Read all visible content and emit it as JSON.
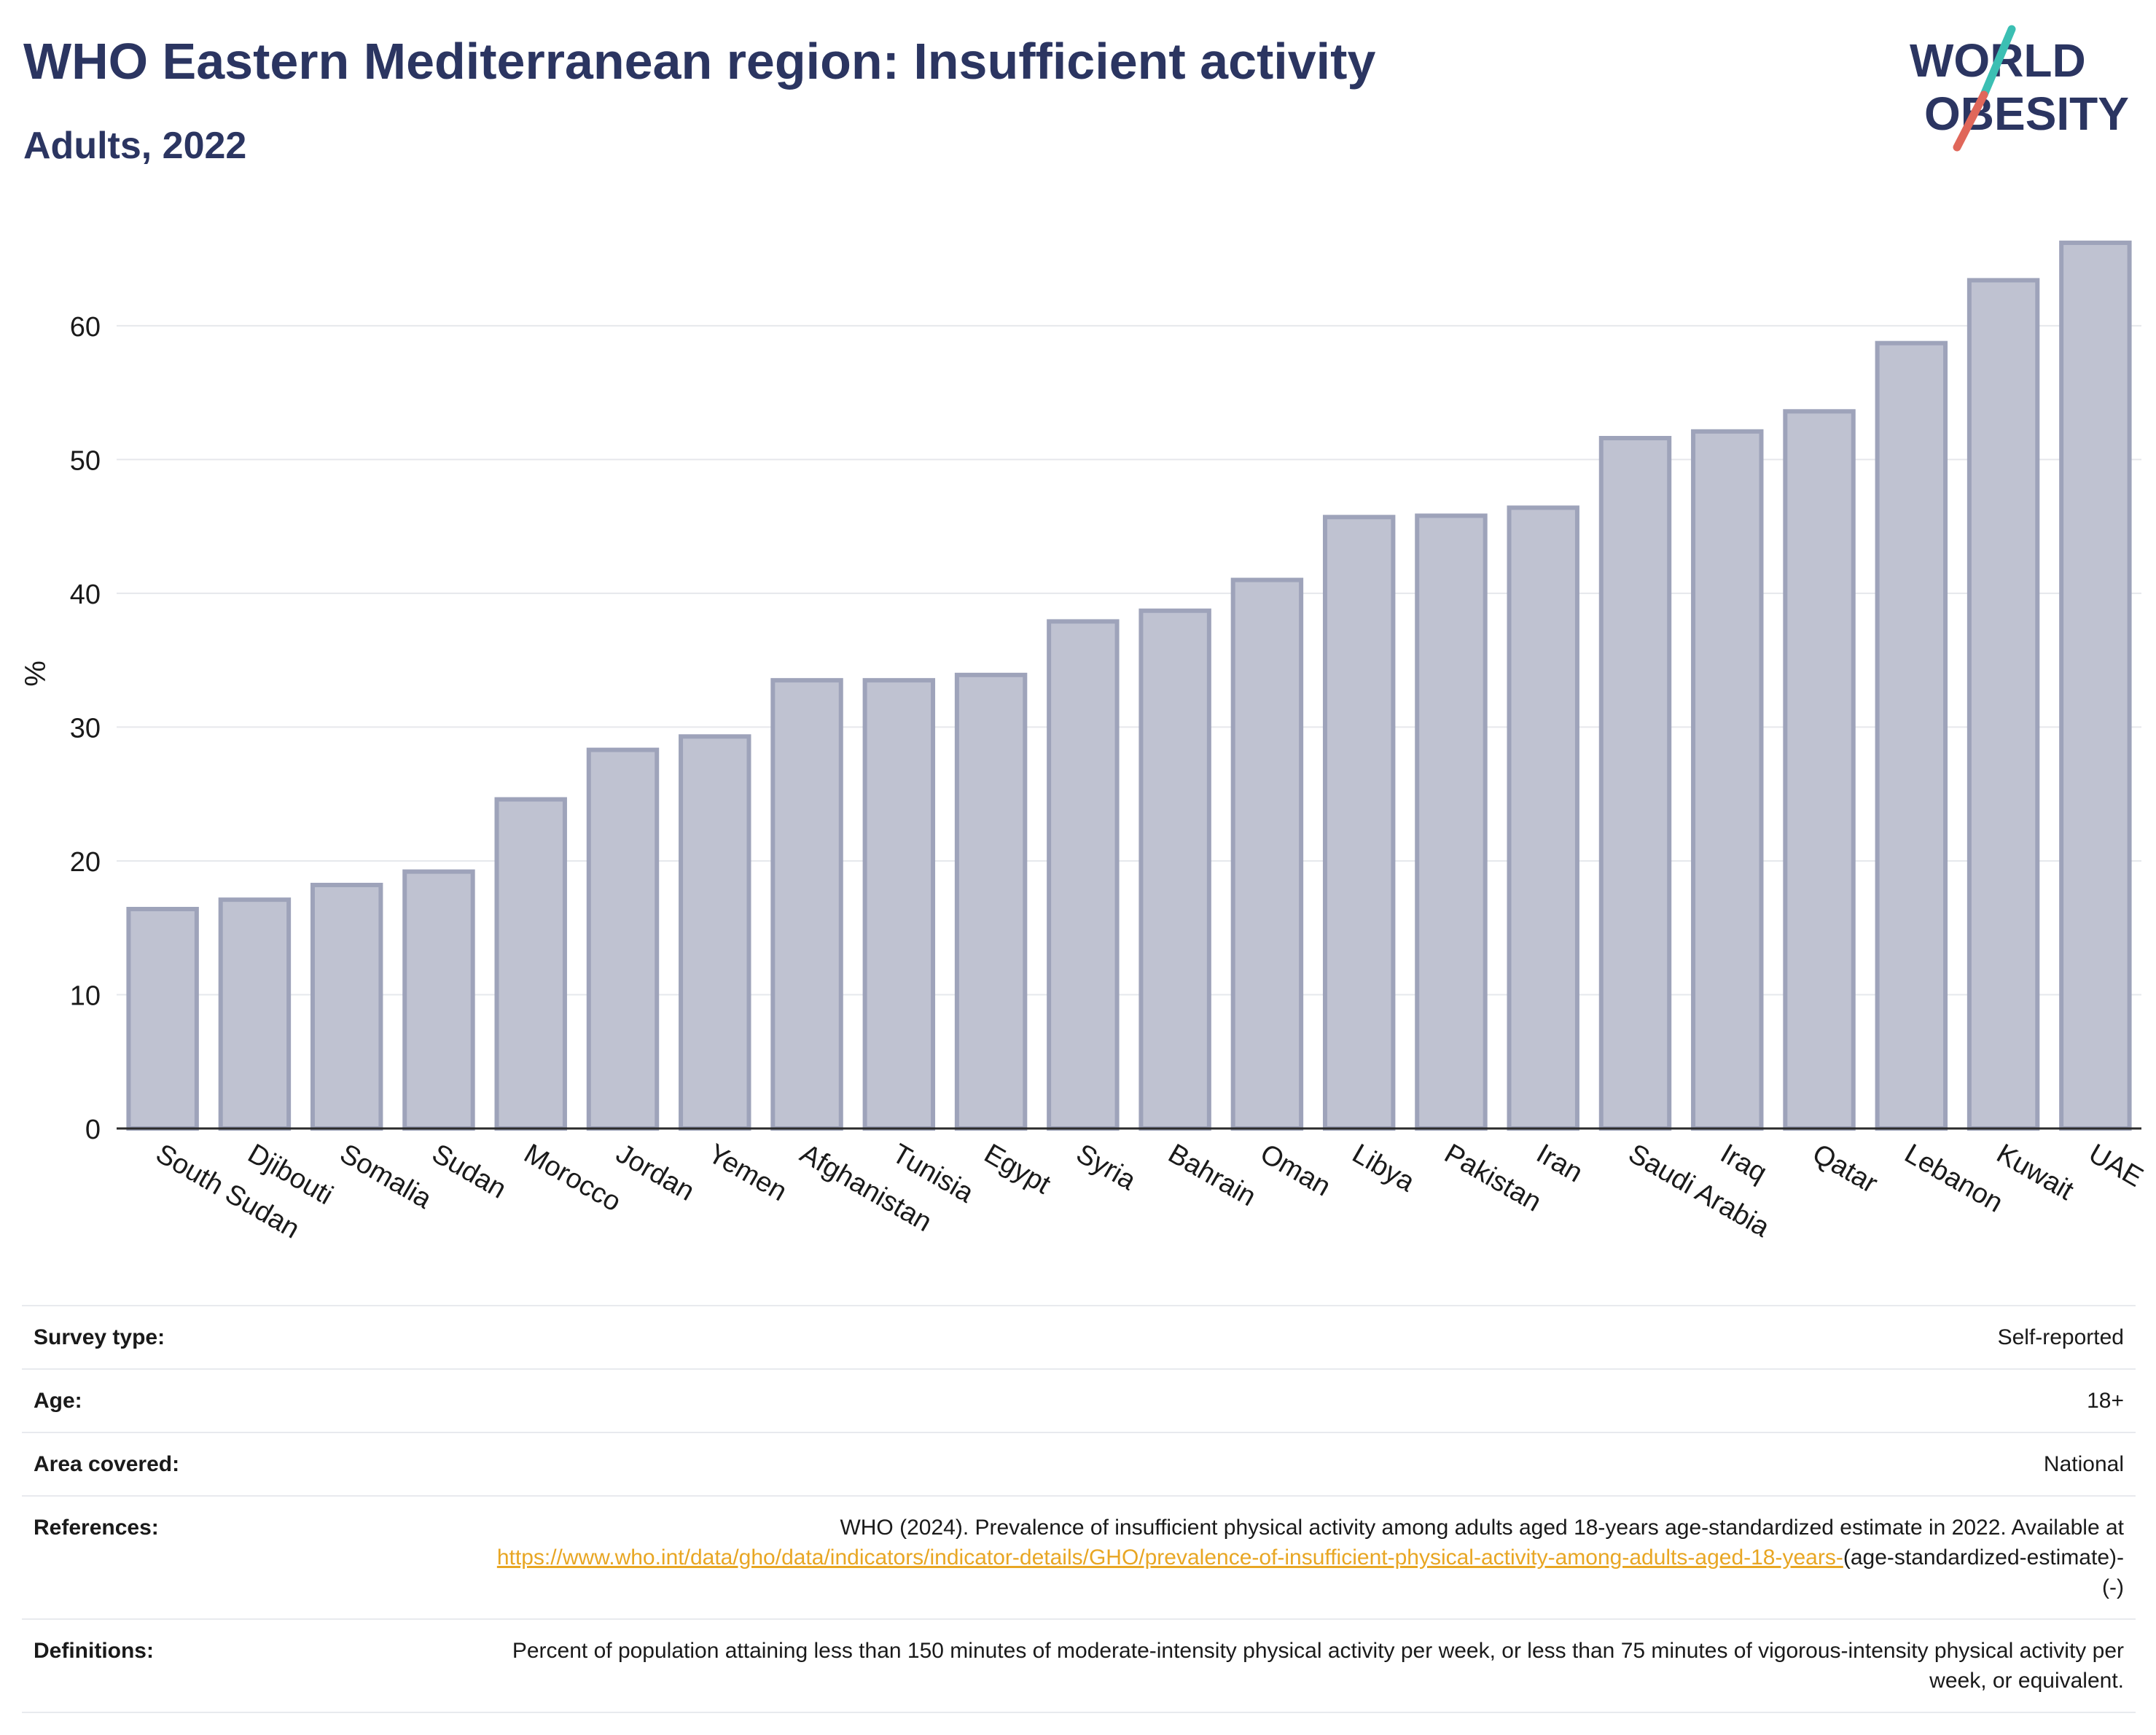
{
  "header": {
    "title": "WHO Eastern Mediterranean region: Insufficient activity",
    "subtitle": "Adults, 2022"
  },
  "logo": {
    "line1": "WORLD",
    "line2": "OBESITY",
    "colors": {
      "text": "#2b3561",
      "slash_teal": "#3bbfb3",
      "slash_coral": "#e0675a"
    }
  },
  "chart_data": {
    "type": "bar",
    "title": "WHO Eastern Mediterranean region: Insufficient activity",
    "subtitle": "Adults, 2022",
    "xlabel": "",
    "ylabel": "%",
    "ylim": [
      0,
      68
    ],
    "yticks": [
      0,
      10,
      20,
      30,
      40,
      50,
      60
    ],
    "grid": true,
    "categories": [
      "South Sudan",
      "Djibouti",
      "Somalia",
      "Sudan",
      "Morocco",
      "Jordan",
      "Yemen",
      "Afghanistan",
      "Tunisia",
      "Egypt",
      "Syria",
      "Bahrain",
      "Oman",
      "Libya",
      "Pakistan",
      "Iran",
      "Saudi Arabia",
      "Iraq",
      "Qatar",
      "Lebanon",
      "Kuwait",
      "UAE"
    ],
    "values": [
      16.4,
      17.1,
      18.2,
      19.2,
      24.6,
      28.3,
      29.3,
      33.5,
      33.5,
      33.9,
      37.9,
      38.7,
      41.0,
      45.7,
      45.8,
      46.4,
      51.6,
      52.1,
      53.6,
      58.7,
      63.4,
      66.2
    ],
    "colors": {
      "bar_fill": "#bfc2d1",
      "bar_stroke": "#9ea3ba",
      "axis": "#2b2b2b",
      "grid": "#e6e8ec",
      "text": "#1a1a1a"
    }
  },
  "info": {
    "rows": [
      {
        "label": "Survey type:",
        "value": "Self-reported"
      },
      {
        "label": "Age:",
        "value": "18+"
      },
      {
        "label": "Area covered:",
        "value": "National"
      }
    ],
    "references": {
      "label": "References:",
      "text": "WHO (2024). Prevalence of insufficient physical activity among adults aged 18-years age-standardized estimate in 2022. Available at",
      "link": "https://www.who.int/data/gho/data/indicators/indicator-details/GHO/prevalence-of-insufficient-physical-activity-among-adults-aged-18-years-",
      "suffix": "(age-standardized-estimate)-(-)"
    },
    "definitions": {
      "label": "Definitions:",
      "text": "Percent of population attaining less than 150 minutes of moderate-intensity physical activity per week, or less than 75 minutes of vigorous-intensity physical activity per week, or equivalent."
    },
    "link_color": "#e8a623"
  }
}
